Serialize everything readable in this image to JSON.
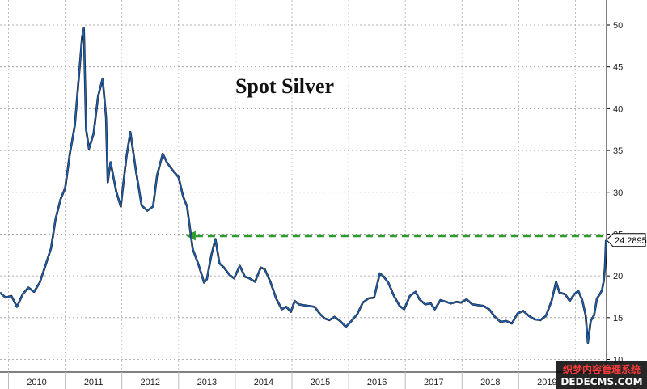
{
  "chart_data": {
    "type": "line",
    "title": "Spot Silver",
    "xlabel": "",
    "ylabel": "",
    "ylim": [
      8.5,
      53
    ],
    "xlim": [
      2009.85,
      2020.55
    ],
    "y_ticks": [
      10,
      15,
      20,
      25,
      30,
      35,
      40,
      45,
      50
    ],
    "x_ticks": [
      "2010",
      "2011",
      "2012",
      "2013",
      "2014",
      "2015",
      "2016",
      "2017",
      "2018",
      "2019",
      "2020"
    ],
    "grid": true,
    "last_value_label": "24.2895",
    "reference_line": {
      "from_date": 2013.13,
      "to_date": 2020.54,
      "value": 24.8,
      "color": "#2e9a2e",
      "style": "dashed-arrow"
    },
    "series": [
      {
        "color": "#1f5fb0",
        "points": [
          [
            2009.85,
            18.0
          ],
          [
            2009.95,
            17.4
          ],
          [
            2010.05,
            17.6
          ],
          [
            2010.15,
            16.3
          ],
          [
            2010.25,
            17.8
          ],
          [
            2010.35,
            18.6
          ],
          [
            2010.45,
            18.1
          ],
          [
            2010.55,
            19.2
          ],
          [
            2010.65,
            21.2
          ],
          [
            2010.75,
            23.3
          ],
          [
            2010.83,
            26.8
          ],
          [
            2010.92,
            29.2
          ],
          [
            2011.0,
            30.5
          ],
          [
            2011.08,
            34.5
          ],
          [
            2011.17,
            38.0
          ],
          [
            2011.25,
            44.5
          ],
          [
            2011.3,
            48.6
          ],
          [
            2011.33,
            49.6
          ],
          [
            2011.37,
            37.5
          ],
          [
            2011.42,
            35.2
          ],
          [
            2011.5,
            37.0
          ],
          [
            2011.58,
            41.5
          ],
          [
            2011.66,
            43.6
          ],
          [
            2011.72,
            39.0
          ],
          [
            2011.75,
            31.2
          ],
          [
            2011.8,
            33.6
          ],
          [
            2011.9,
            30.1
          ],
          [
            2011.98,
            28.3
          ],
          [
            2012.08,
            34.2
          ],
          [
            2012.15,
            37.2
          ],
          [
            2012.25,
            32.5
          ],
          [
            2012.35,
            28.4
          ],
          [
            2012.45,
            27.8
          ],
          [
            2012.55,
            28.3
          ],
          [
            2012.62,
            32.0
          ],
          [
            2012.72,
            34.6
          ],
          [
            2012.8,
            33.5
          ],
          [
            2012.9,
            32.6
          ],
          [
            2013.0,
            31.8
          ],
          [
            2013.08,
            29.5
          ],
          [
            2013.15,
            28.3
          ],
          [
            2013.25,
            23.2
          ],
          [
            2013.35,
            21.4
          ],
          [
            2013.45,
            19.2
          ],
          [
            2013.5,
            19.6
          ],
          [
            2013.58,
            22.5
          ],
          [
            2013.65,
            24.4
          ],
          [
            2013.72,
            21.5
          ],
          [
            2013.8,
            21.0
          ],
          [
            2013.9,
            20.1
          ],
          [
            2013.98,
            19.7
          ],
          [
            2014.08,
            21.2
          ],
          [
            2014.17,
            19.9
          ],
          [
            2014.25,
            19.7
          ],
          [
            2014.35,
            19.3
          ],
          [
            2014.45,
            21.0
          ],
          [
            2014.52,
            20.8
          ],
          [
            2014.62,
            19.3
          ],
          [
            2014.72,
            17.3
          ],
          [
            2014.82,
            16.0
          ],
          [
            2014.9,
            16.3
          ],
          [
            2014.98,
            15.7
          ],
          [
            2015.05,
            17.0
          ],
          [
            2015.12,
            16.6
          ],
          [
            2015.2,
            16.5
          ],
          [
            2015.3,
            16.4
          ],
          [
            2015.4,
            16.3
          ],
          [
            2015.5,
            15.4
          ],
          [
            2015.58,
            14.9
          ],
          [
            2015.66,
            14.7
          ],
          [
            2015.75,
            15.1
          ],
          [
            2015.85,
            14.6
          ],
          [
            2015.95,
            13.9
          ],
          [
            2016.05,
            14.6
          ],
          [
            2016.15,
            15.4
          ],
          [
            2016.25,
            16.8
          ],
          [
            2016.35,
            17.3
          ],
          [
            2016.45,
            17.4
          ],
          [
            2016.55,
            20.3
          ],
          [
            2016.62,
            19.9
          ],
          [
            2016.7,
            19.2
          ],
          [
            2016.8,
            17.6
          ],
          [
            2016.9,
            16.4
          ],
          [
            2016.98,
            16.0
          ],
          [
            2017.08,
            17.6
          ],
          [
            2017.18,
            18.1
          ],
          [
            2017.25,
            17.2
          ],
          [
            2017.35,
            16.6
          ],
          [
            2017.45,
            16.7
          ],
          [
            2017.52,
            16.0
          ],
          [
            2017.62,
            17.1
          ],
          [
            2017.72,
            16.9
          ],
          [
            2017.8,
            16.7
          ],
          [
            2017.9,
            16.9
          ],
          [
            2017.98,
            16.8
          ],
          [
            2018.08,
            17.2
          ],
          [
            2018.18,
            16.6
          ],
          [
            2018.28,
            16.5
          ],
          [
            2018.38,
            16.4
          ],
          [
            2018.48,
            16.0
          ],
          [
            2018.58,
            15.1
          ],
          [
            2018.68,
            14.5
          ],
          [
            2018.78,
            14.6
          ],
          [
            2018.88,
            14.3
          ],
          [
            2018.98,
            15.5
          ],
          [
            2019.08,
            15.8
          ],
          [
            2019.18,
            15.2
          ],
          [
            2019.28,
            14.8
          ],
          [
            2019.38,
            14.7
          ],
          [
            2019.48,
            15.2
          ],
          [
            2019.58,
            17.0
          ],
          [
            2019.66,
            19.3
          ],
          [
            2019.72,
            18.0
          ],
          [
            2019.82,
            17.8
          ],
          [
            2019.9,
            17.0
          ],
          [
            2019.98,
            17.8
          ],
          [
            2020.05,
            18.2
          ],
          [
            2020.12,
            17.1
          ],
          [
            2020.18,
            15.3
          ],
          [
            2020.22,
            12.0
          ],
          [
            2020.27,
            14.6
          ],
          [
            2020.33,
            15.3
          ],
          [
            2020.38,
            17.3
          ],
          [
            2020.43,
            17.8
          ],
          [
            2020.47,
            18.3
          ],
          [
            2020.5,
            19.4
          ],
          [
            2020.52,
            20.9
          ],
          [
            2020.54,
            24.29
          ]
        ]
      }
    ]
  }
}
